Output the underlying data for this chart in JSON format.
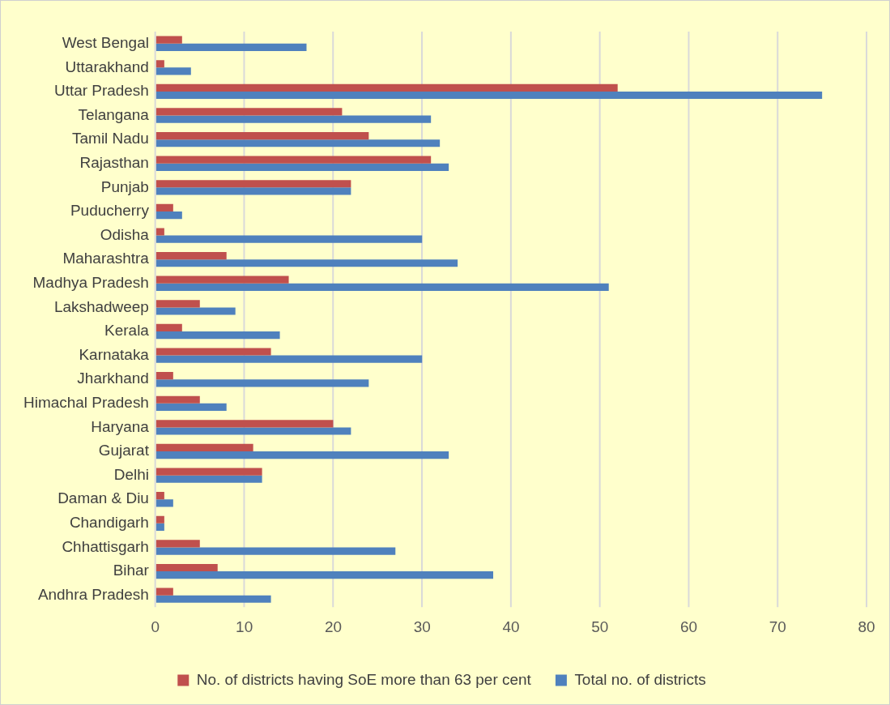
{
  "chart_data": {
    "type": "bar",
    "orientation": "horizontal",
    "categories": [
      "West Bengal",
      "Uttarakhand",
      "Uttar Pradesh",
      "Telangana",
      "Tamil Nadu",
      "Rajasthan",
      "Punjab",
      "Puducherry",
      "Odisha",
      "Maharashtra",
      "Madhya Pradesh",
      "Lakshadweep",
      "Kerala",
      "Karnataka",
      "Jharkhand",
      "Himachal Pradesh",
      "Haryana",
      "Gujarat",
      "Delhi",
      "Daman & Diu",
      "Chandigarh",
      "Chhattisgarh",
      "Bihar",
      "Andhra Pradesh"
    ],
    "series": [
      {
        "name": "No. of districts having SoE more than 63 per cent",
        "color": "#c0504d",
        "values": [
          3,
          1,
          52,
          21,
          24,
          31,
          22,
          2,
          1,
          8,
          15,
          5,
          3,
          13,
          2,
          5,
          20,
          11,
          12,
          1,
          1,
          5,
          7,
          2
        ]
      },
      {
        "name": "Total no. of districts",
        "color": "#4f81bd",
        "values": [
          17,
          4,
          75,
          31,
          32,
          33,
          22,
          3,
          30,
          34,
          51,
          9,
          14,
          30,
          24,
          8,
          22,
          33,
          12,
          2,
          1,
          27,
          38,
          13
        ]
      }
    ],
    "xlim": [
      0,
      80
    ],
    "xticks": [
      0,
      10,
      20,
      30,
      40,
      50,
      60,
      70,
      80
    ],
    "grid": "x",
    "legend": "bottom"
  }
}
